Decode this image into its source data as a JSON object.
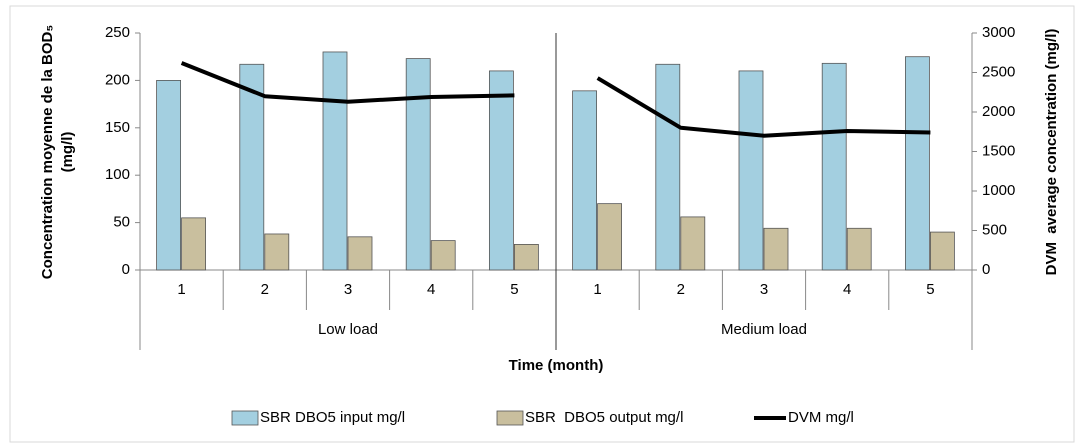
{
  "chart_data": {
    "type": "bar-line",
    "x_label": "Time (month)",
    "y_label": [
      "Concentration moyenne de la BOD₅",
      "(mg/l)"
    ],
    "y2_label": "DVM  average concentration (mg/l)",
    "groups": [
      {
        "name": "Low load",
        "categories": [
          "1",
          "2",
          "3",
          "4",
          "5"
        ]
      },
      {
        "name": "Medium load",
        "categories": [
          "1",
          "2",
          "3",
          "4",
          "5"
        ]
      }
    ],
    "ylim": [
      0,
      250
    ],
    "yticks": [
      0,
      50,
      100,
      150,
      200,
      250
    ],
    "y2lim": [
      0,
      3000
    ],
    "y2ticks": [
      0,
      500,
      1000,
      1500,
      2000,
      2500,
      3000
    ],
    "legend": "bottom",
    "series": [
      {
        "name": "SBR DBO5 input mg/l",
        "type": "bar",
        "color": "#a3cfe0",
        "values": [
          200,
          217,
          230,
          223,
          210,
          189,
          217,
          210,
          218,
          225
        ]
      },
      {
        "name": "SBR  DBO5 output mg/l",
        "type": "bar",
        "color": "#c9bf9e",
        "values": [
          55,
          38,
          35,
          31,
          27,
          70,
          56,
          44,
          44,
          40
        ]
      },
      {
        "name": "DVM mg/l",
        "type": "line",
        "axis": "y2",
        "color": "#000000",
        "values": [
          2620,
          2200,
          2130,
          2190,
          2210,
          2430,
          1800,
          1700,
          1760,
          1740
        ]
      }
    ]
  }
}
